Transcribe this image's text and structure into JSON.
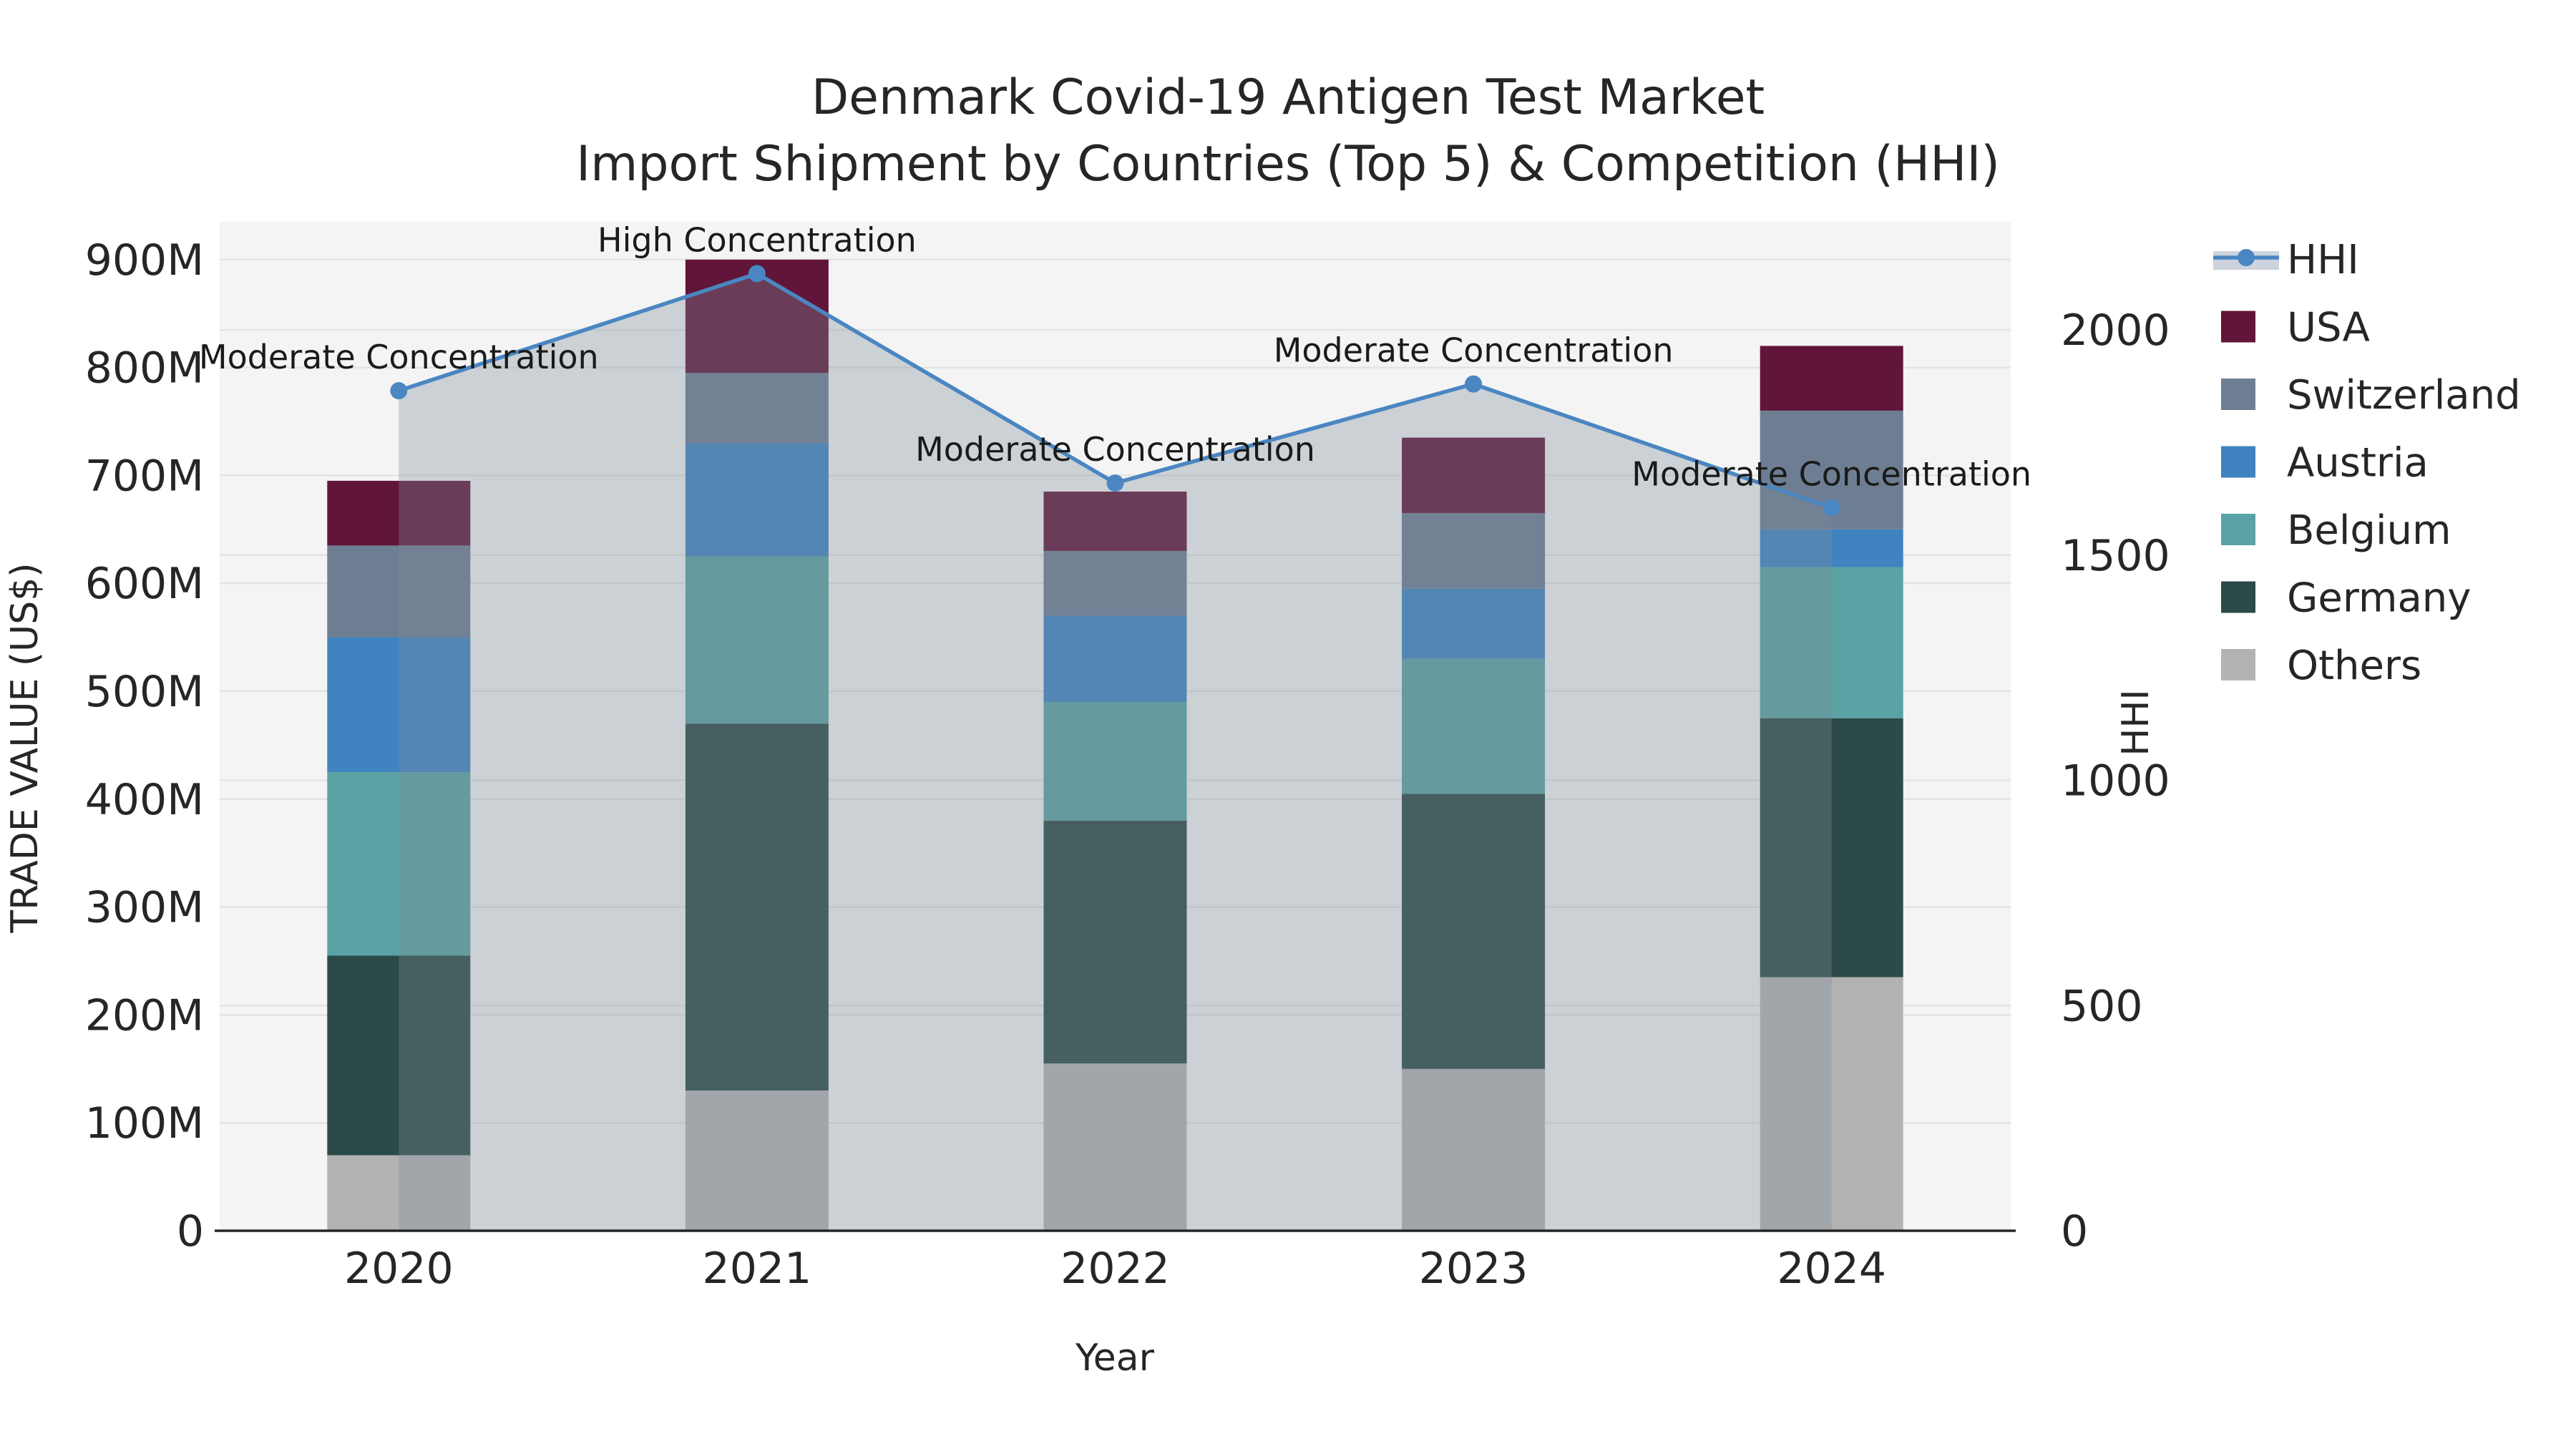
{
  "title": {
    "line1": "Denmark Covid-19 Antigen Test Market",
    "line2": "Import Shipment by Countries (Top 5) & Competition (HHI)"
  },
  "axes": {
    "x": {
      "label": "Year",
      "categories": [
        "2020",
        "2021",
        "2022",
        "2023",
        "2024"
      ]
    },
    "y_left": {
      "label": "TRADE VALUE (US$)",
      "ticks": [
        "0",
        "100M",
        "200M",
        "300M",
        "400M",
        "500M",
        "600M",
        "700M",
        "800M",
        "900M"
      ],
      "tick_values": [
        0,
        100,
        200,
        300,
        400,
        500,
        600,
        700,
        800,
        900
      ]
    },
    "y_right": {
      "label": "HHI",
      "ticks": [
        "0",
        "500",
        "1000",
        "1500",
        "2000"
      ],
      "tick_values": [
        0,
        500,
        1000,
        1500,
        2000
      ]
    }
  },
  "legend": [
    {
      "label": "HHI",
      "type": "line",
      "color": "#4a86c2"
    },
    {
      "label": "USA",
      "type": "swatch",
      "color": "#611539"
    },
    {
      "label": "Switzerland",
      "type": "swatch",
      "color": "#6e7e92"
    },
    {
      "label": "Austria",
      "type": "swatch",
      "color": "#3f83c0"
    },
    {
      "label": "Belgium",
      "type": "swatch",
      "color": "#5aa2a3"
    },
    {
      "label": "Germany",
      "type": "swatch",
      "color": "#2c4a47"
    },
    {
      "label": "Others",
      "type": "swatch",
      "color": "#b3b3b3"
    }
  ],
  "chart_data": {
    "type": "combo-stacked-bar-line",
    "title": "Denmark Covid-19 Antigen Test Market — Import Shipment by Countries (Top 5) & Competition (HHI)",
    "categories": [
      "2020",
      "2021",
      "2022",
      "2023",
      "2024"
    ],
    "xlabel": "Year",
    "ylabel_left": "TRADE VALUE (US$)",
    "ylabel_right": "HHI",
    "ylim_left": [
      0,
      935
    ],
    "ylim_right": [
      0,
      2240
    ],
    "unit_left": "M US$",
    "grid": "on",
    "legend_position": "right",
    "series": [
      {
        "name": "Others",
        "color": "#b3b3b3",
        "values": [
          70,
          130,
          155,
          150,
          235
        ]
      },
      {
        "name": "Germany",
        "color": "#2c4a47",
        "values": [
          185,
          340,
          225,
          255,
          240
        ]
      },
      {
        "name": "Belgium",
        "color": "#5aa2a3",
        "values": [
          170,
          155,
          110,
          125,
          140
        ]
      },
      {
        "name": "Austria",
        "color": "#3f83c0",
        "values": [
          125,
          105,
          80,
          65,
          35
        ]
      },
      {
        "name": "Switzerland",
        "color": "#6e7e92",
        "values": [
          85,
          65,
          60,
          70,
          110
        ]
      },
      {
        "name": "USA",
        "color": "#611539",
        "values": [
          60,
          105,
          55,
          70,
          60
        ]
      }
    ],
    "bar_totals": [
      695,
      900,
      685,
      735,
      820
    ],
    "line_series": {
      "name": "HHI",
      "axis": "right",
      "color": "#4a86c2",
      "area_fill": "rgba(125,139,152,0.33)",
      "values": [
        1865,
        2125,
        1660,
        1880,
        1605
      ]
    },
    "annotations": [
      {
        "year": "2020",
        "text": "Moderate Concentration"
      },
      {
        "year": "2021",
        "text": "High Concentration"
      },
      {
        "year": "2022",
        "text": "Moderate Concentration"
      },
      {
        "year": "2023",
        "text": "Moderate Concentration"
      },
      {
        "year": "2024",
        "text": "Moderate Concentration"
      }
    ]
  },
  "style": {
    "figure_bg": "#ffffff",
    "plot_bg": "#f4f4f4",
    "grid_color": "#e3e3e3",
    "axis_color": "#262626",
    "hhi_band_color": "#cdd3dd"
  }
}
